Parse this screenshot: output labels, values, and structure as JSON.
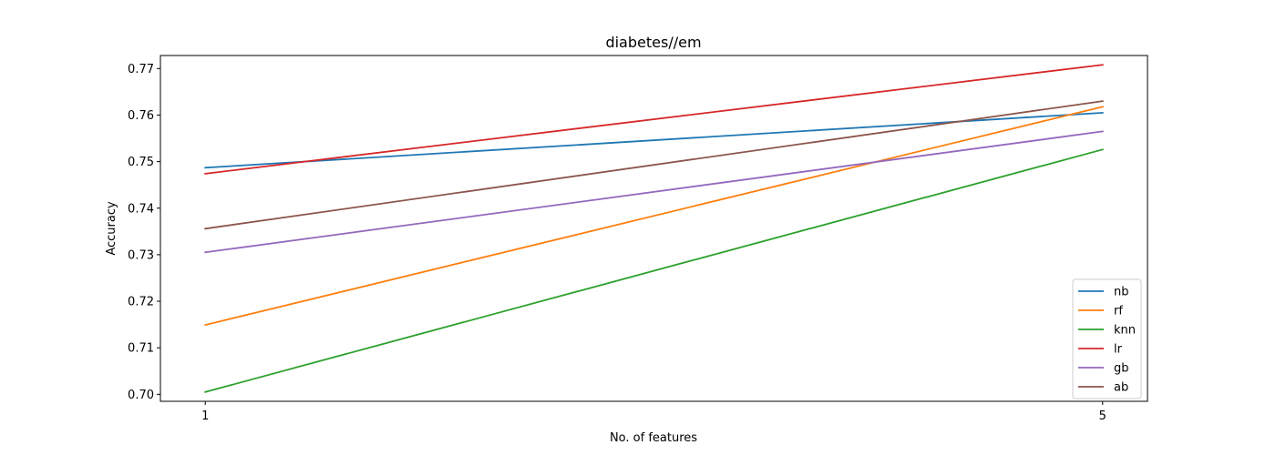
{
  "chart_data": {
    "type": "line",
    "title": "diabetes//em",
    "xlabel": "No. of features",
    "ylabel": "Accuracy",
    "x": [
      1,
      5
    ],
    "xticks": [
      "1",
      "5"
    ],
    "xlim": [
      0.8,
      5.2
    ],
    "ylim": [
      0.6985,
      0.7728
    ],
    "yticks": [
      "0.70",
      "0.71",
      "0.72",
      "0.73",
      "0.74",
      "0.75",
      "0.76",
      "0.77"
    ],
    "grid": false,
    "legend_position": "lower-right",
    "series": [
      {
        "name": "nb",
        "color": "#1f77b4",
        "values": [
          0.7487,
          0.7605
        ]
      },
      {
        "name": "rf",
        "color": "#ff7f0e",
        "values": [
          0.7149,
          0.7618
        ]
      },
      {
        "name": "knn",
        "color": "#2ca02c",
        "values": [
          0.7005,
          0.7526
        ]
      },
      {
        "name": "lr",
        "color": "#d62728",
        "values": [
          0.7474,
          0.7708
        ]
      },
      {
        "name": "gb",
        "color": "#9467bd",
        "values": [
          0.7305,
          0.7565
        ]
      },
      {
        "name": "ab",
        "color": "#8c564b",
        "values": [
          0.7356,
          0.763
        ]
      }
    ]
  }
}
